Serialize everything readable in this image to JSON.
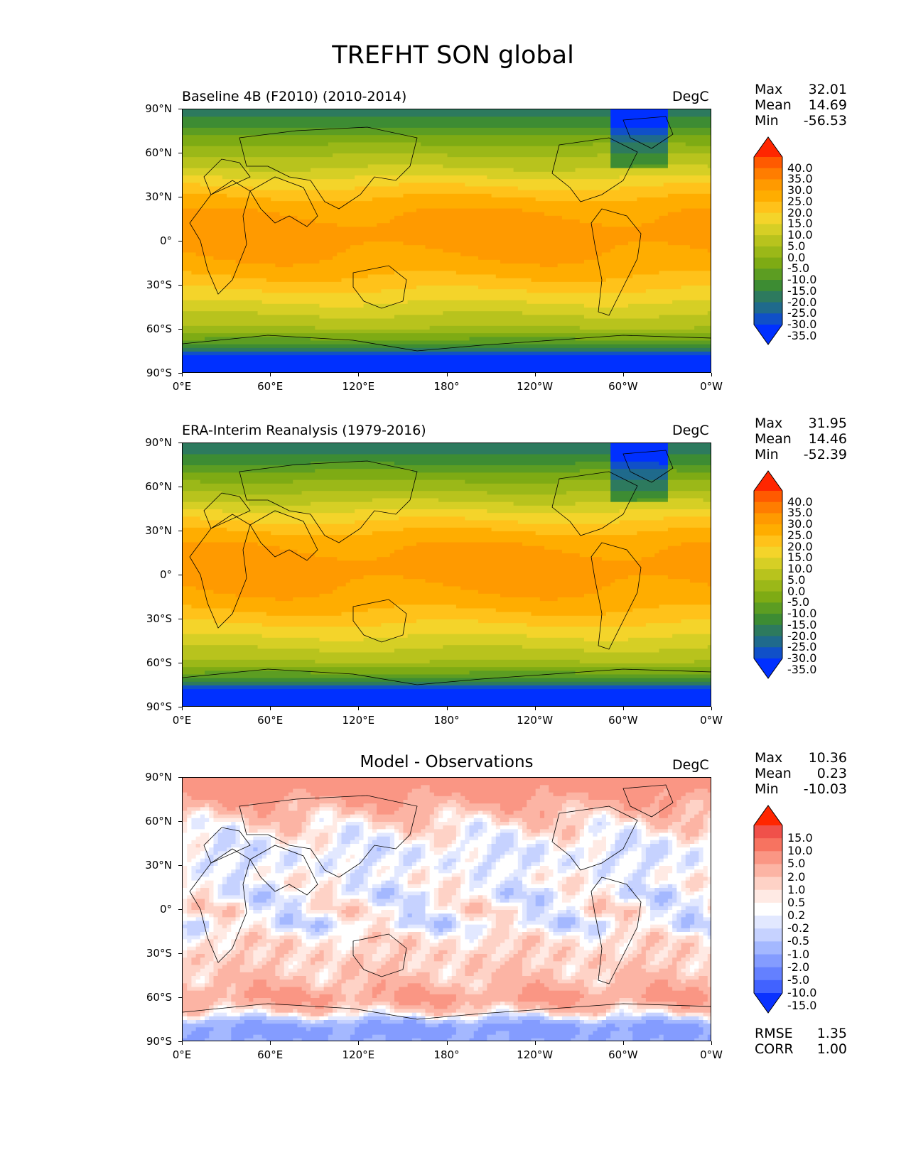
{
  "figure": {
    "title": "TREFHT SON global"
  },
  "chart_data": [
    {
      "type": "heatmap",
      "title": "Baseline 4B (F2010) (2010-2014)",
      "units": "DegC",
      "stats": {
        "max_label": "Max",
        "max": "32.01",
        "mean_label": "Mean",
        "mean": "14.69",
        "min_label": "Min",
        "min": "-56.53"
      },
      "xlim": [
        0,
        360
      ],
      "ylim": [
        -90,
        90
      ],
      "x_ticks": [
        "0°E",
        "60°E",
        "120°E",
        "180°",
        "120°W",
        "60°W",
        "0°W"
      ],
      "y_ticks": [
        "90°N",
        "60°N",
        "30°N",
        "0°",
        "30°S",
        "60°S",
        "90°S"
      ],
      "colorbar": {
        "levels": [
          "40.0",
          "35.0",
          "30.0",
          "25.0",
          "20.0",
          "15.0",
          "10.0",
          "5.0",
          "0.0",
          "-5.0",
          "-10.0",
          "-15.0",
          "-20.0",
          "-25.0",
          "-30.0",
          "-35.0"
        ],
        "colors": [
          "#ff2600",
          "#ff5a00",
          "#ff7d00",
          "#ff9a00",
          "#ffad00",
          "#ffc21a",
          "#f4d42a",
          "#d6cf25",
          "#b8c31d",
          "#9bb818",
          "#7eab14",
          "#5c9d22",
          "#3d8c33",
          "#2d7a5e",
          "#1f6a8c",
          "#1050c8",
          "#0030ff"
        ]
      },
      "latitude_profile": [
        [
          90,
          -22
        ],
        [
          80,
          -18
        ],
        [
          70,
          -8
        ],
        [
          60,
          -1
        ],
        [
          50,
          5
        ],
        [
          40,
          13
        ],
        [
          30,
          20
        ],
        [
          20,
          25
        ],
        [
          10,
          27
        ],
        [
          0,
          27
        ],
        [
          -10,
          25
        ],
        [
          -20,
          22
        ],
        [
          -30,
          17
        ],
        [
          -40,
          11
        ],
        [
          -50,
          5
        ],
        [
          -60,
          -1
        ],
        [
          -70,
          -15
        ],
        [
          -80,
          -40
        ],
        [
          -90,
          -50
        ]
      ]
    },
    {
      "type": "heatmap",
      "title": "ERA-Interim Reanalysis (1979-2016)",
      "units": "DegC",
      "stats": {
        "max_label": "Max",
        "max": "31.95",
        "mean_label": "Mean",
        "mean": "14.46",
        "min_label": "Min",
        "min": "-52.39"
      },
      "xlim": [
        0,
        360
      ],
      "ylim": [
        -90,
        90
      ],
      "x_ticks": [
        "0°E",
        "60°E",
        "120°E",
        "180°",
        "120°W",
        "60°W",
        "0°W"
      ],
      "y_ticks": [
        "90°N",
        "60°N",
        "30°N",
        "0°",
        "30°S",
        "60°S",
        "90°S"
      ],
      "colorbar": {
        "levels": [
          "40.0",
          "35.0",
          "30.0",
          "25.0",
          "20.0",
          "15.0",
          "10.0",
          "5.0",
          "0.0",
          "-5.0",
          "-10.0",
          "-15.0",
          "-20.0",
          "-25.0",
          "-30.0",
          "-35.0"
        ],
        "colors": [
          "#ff2600",
          "#ff5a00",
          "#ff7d00",
          "#ff9a00",
          "#ffad00",
          "#ffc21a",
          "#f4d42a",
          "#d6cf25",
          "#b8c31d",
          "#9bb818",
          "#7eab14",
          "#5c9d22",
          "#3d8c33",
          "#2d7a5e",
          "#1f6a8c",
          "#1050c8",
          "#0030ff"
        ]
      },
      "latitude_profile": [
        [
          90,
          -24
        ],
        [
          80,
          -19
        ],
        [
          70,
          -9
        ],
        [
          60,
          -2
        ],
        [
          50,
          5
        ],
        [
          40,
          13
        ],
        [
          30,
          20
        ],
        [
          20,
          25
        ],
        [
          10,
          27
        ],
        [
          0,
          27
        ],
        [
          -10,
          25
        ],
        [
          -20,
          22
        ],
        [
          -30,
          17
        ],
        [
          -40,
          11
        ],
        [
          -50,
          5
        ],
        [
          -60,
          -1
        ],
        [
          -70,
          -15
        ],
        [
          -80,
          -40
        ],
        [
          -90,
          -50
        ]
      ]
    },
    {
      "type": "heatmap",
      "title": "Model - Observations",
      "units": "DegC",
      "stats": {
        "max_label": "Max",
        "max": "10.36",
        "mean_label": "Mean",
        "mean": "0.23",
        "min_label": "Min",
        "min": "-10.03"
      },
      "metrics": {
        "rmse_label": "RMSE",
        "rmse": "1.35",
        "corr_label": "CORR",
        "corr": "1.00"
      },
      "xlim": [
        0,
        360
      ],
      "ylim": [
        -90,
        90
      ],
      "x_ticks": [
        "0°E",
        "60°E",
        "120°E",
        "180°",
        "120°W",
        "60°W",
        "0°W"
      ],
      "y_ticks": [
        "90°N",
        "60°N",
        "30°N",
        "0°",
        "30°S",
        "60°S",
        "90°S"
      ],
      "colorbar": {
        "levels": [
          "15.0",
          "10.0",
          "5.0",
          "2.0",
          "1.0",
          "0.5",
          "0.2",
          "-0.2",
          "-0.5",
          "-1.0",
          "-2.0",
          "-5.0",
          "-10.0",
          "-15.0"
        ],
        "colors": [
          "#ff2600",
          "#f0504a",
          "#f77360",
          "#fa9684",
          "#fcb4a4",
          "#fed2c6",
          "#ffeae4",
          "#ffffff",
          "#e2e8ff",
          "#c6d2ff",
          "#a4b8ff",
          "#849cff",
          "#6480ff",
          "#4162ff",
          "#0a32ff"
        ]
      },
      "latitude_profile": [
        [
          90,
          3
        ],
        [
          80,
          2.5
        ],
        [
          70,
          1.5
        ],
        [
          60,
          0.6
        ],
        [
          50,
          0.1
        ],
        [
          40,
          -0.3
        ],
        [
          30,
          -0.2
        ],
        [
          20,
          0.1
        ],
        [
          10,
          -0.3
        ],
        [
          0,
          0.3
        ],
        [
          -10,
          -0.4
        ],
        [
          -20,
          0.5
        ],
        [
          -30,
          0.7
        ],
        [
          -40,
          0.8
        ],
        [
          -50,
          1.2
        ],
        [
          -60,
          2.2
        ],
        [
          -70,
          0.5
        ],
        [
          -80,
          -2.5
        ],
        [
          -90,
          -2
        ]
      ]
    }
  ]
}
